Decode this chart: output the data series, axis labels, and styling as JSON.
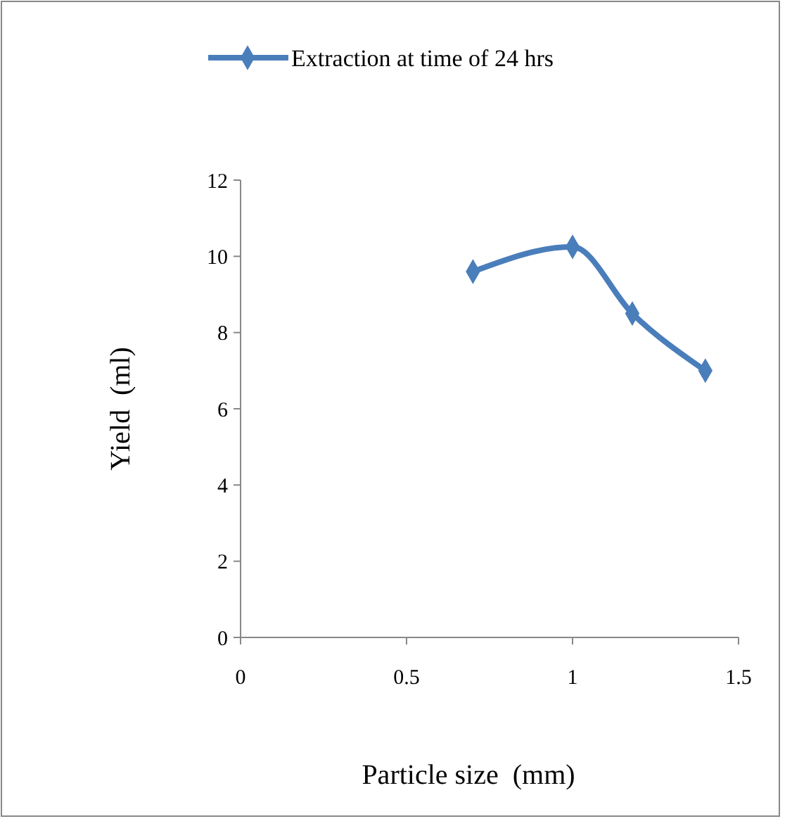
{
  "chart_data": {
    "type": "line",
    "xlabel": "Particle size  (mm)",
    "ylabel": "Yield  (ml)",
    "x": [
      0.7,
      1.0,
      1.18,
      1.4
    ],
    "series": [
      {
        "name": "Extraction at time of 24 hrs",
        "color": "#4a7ebb",
        "values": [
          9.6,
          10.25,
          8.5,
          7.0
        ]
      }
    ],
    "xlim": [
      0,
      1.5
    ],
    "xticks": [
      0,
      0.5,
      1,
      1.5
    ],
    "ylim": [
      0,
      12
    ],
    "yticks": [
      0,
      2,
      4,
      6,
      8,
      10,
      12
    ],
    "grid": false,
    "legend": "top",
    "marker": "diamond",
    "line_style": "solid"
  }
}
